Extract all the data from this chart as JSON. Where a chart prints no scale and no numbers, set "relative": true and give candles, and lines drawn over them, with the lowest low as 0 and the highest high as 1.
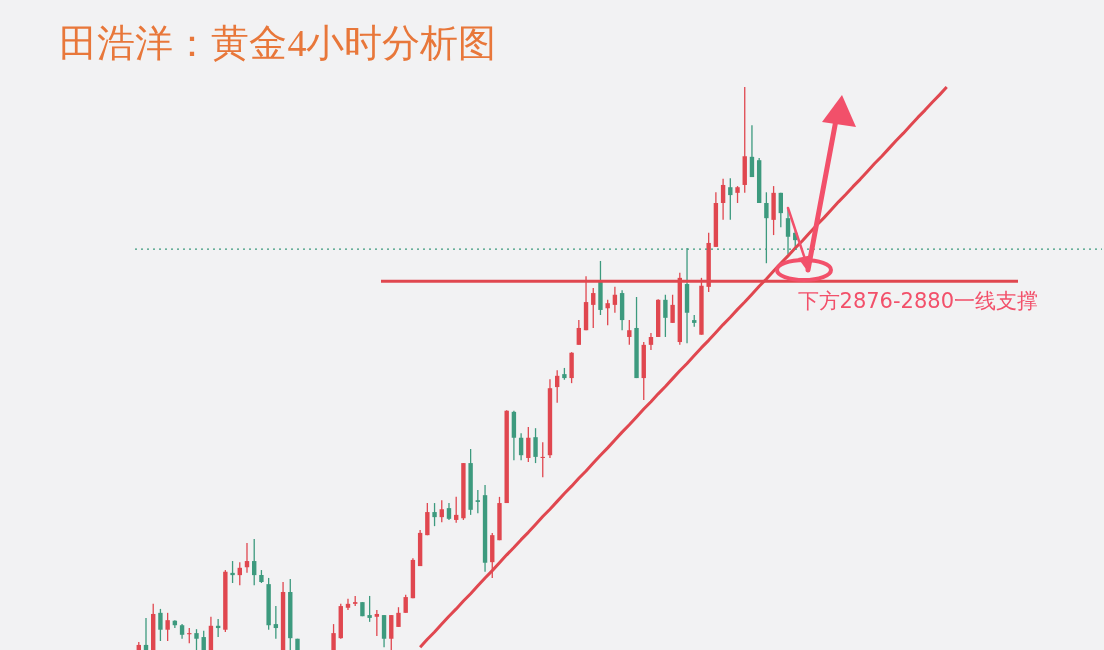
{
  "chart_data": {
    "type": "candlestick",
    "title": "田浩洋：黄金4小时分析图",
    "relative": true,
    "categories": [
      null,
      null,
      null,
      null,
      null,
      null,
      null,
      null,
      null,
      null,
      null,
      null,
      null,
      null,
      null,
      null,
      null,
      null,
      null,
      null,
      null,
      null,
      null,
      null,
      null,
      null,
      null,
      null,
      null,
      null,
      null,
      null,
      null,
      null,
      null,
      null,
      null,
      null,
      null,
      null,
      null,
      null,
      null,
      null,
      null,
      null,
      null,
      null,
      null,
      null,
      null,
      null,
      null,
      null,
      null,
      null,
      null,
      null,
      null,
      null,
      null,
      null,
      null,
      null,
      null,
      null,
      null,
      null,
      null,
      null,
      null,
      null,
      null,
      null,
      null,
      null,
      null,
      null,
      null,
      null,
      null,
      null,
      null,
      null,
      null,
      null,
      null,
      null,
      null,
      null,
      null,
      null,
      null,
      null,
      null,
      null,
      null,
      null,
      null,
      null,
      null,
      null,
      null,
      null,
      null,
      null,
      null,
      null,
      null,
      null,
      null,
      null,
      null,
      null,
      null,
      null,
      null,
      null,
      null,
      null,
      null,
      null,
      null,
      null,
      null,
      null,
      null,
      null,
      null,
      null,
      null,
      null,
      null,
      null
    ],
    "ohlc": [
      [
        0,
        0.014,
        0,
        0.009
      ],
      [
        0.009,
        0.057,
        0,
        0
      ],
      [
        0,
        0.082,
        0,
        0.064
      ],
      [
        0.066,
        0.073,
        0.016,
        0.036
      ],
      [
        0.036,
        0.066,
        0.016,
        0.053
      ],
      [
        0.052,
        0.053,
        0.039,
        0.044
      ],
      [
        0.044,
        0.046,
        0.02,
        0.027
      ],
      [
        0.028,
        0.039,
        0.012,
        0.03
      ],
      [
        0.03,
        0.037,
        0,
        0.02
      ],
      [
        0.023,
        0.034,
        0,
        0
      ],
      [
        0,
        0.059,
        0,
        0.043
      ],
      [
        0.043,
        0.055,
        0.023,
        0.039
      ],
      [
        0.036,
        0.142,
        0.032,
        0.139
      ],
      [
        0.137,
        0.158,
        0.119,
        0.133
      ],
      [
        0.133,
        0.156,
        0.115,
        0.146
      ],
      [
        0.147,
        0.19,
        0.137,
        0.158
      ],
      [
        0.158,
        0.197,
        0.115,
        0.133
      ],
      [
        0.133,
        0.142,
        0.119,
        0.121
      ],
      [
        0.117,
        0.128,
        0.036,
        0.044
      ],
      [
        0.046,
        0.078,
        0.02,
        0.039
      ],
      [
        0,
        0.121,
        0,
        0.103
      ],
      [
        0.103,
        0.126,
        0,
        0.021
      ],
      [
        0.02,
        0.02,
        0,
        0
      ],
      null,
      null,
      null,
      null,
      [
        0,
        0.046,
        0,
        0.03
      ],
      [
        0.021,
        0.082,
        0.02,
        0.078
      ],
      [
        0.075,
        0.091,
        0.071,
        0.082
      ],
      [
        0.082,
        0.096,
        0.078,
        0.085
      ],
      [
        0.085,
        0.085,
        0.06,
        0.06
      ],
      [
        0.062,
        0.096,
        0.05,
        0.057
      ],
      [
        0.059,
        0.071,
        0.025,
        0.064
      ],
      [
        0.062,
        0.062,
        0.005,
        0.02
      ],
      [
        0.02,
        0.062,
        0,
        0.062
      ],
      [
        0.041,
        0.076,
        0.041,
        0.066
      ],
      [
        0.066,
        0.098,
        0.066,
        0.094
      ],
      [
        0.092,
        0.163,
        0.092,
        0.16
      ],
      [
        0.149,
        0.213,
        0.149,
        0.208
      ],
      [
        0.204,
        0.261,
        0.204,
        0.245
      ],
      [
        0.245,
        0.261,
        0.22,
        0.236
      ],
      [
        0.236,
        0.266,
        0.227,
        0.25
      ],
      [
        0.252,
        0.261,
        0.231,
        0.233
      ],
      [
        0.231,
        0.272,
        0.226,
        0.24
      ],
      [
        0.234,
        0.332,
        0.231,
        0.332
      ],
      [
        0.332,
        0.357,
        0.24,
        0.249
      ],
      [
        0.266,
        0.284,
        0.243,
        0.263
      ],
      [
        0.275,
        0.293,
        0.139,
        0.155
      ],
      [
        0.156,
        0.208,
        0.128,
        0.204
      ],
      [
        0.195,
        0.272,
        0.195,
        0.261
      ],
      [
        0.261,
        0.426,
        0.261,
        0.425
      ],
      [
        0.423,
        0.425,
        0.337,
        0.377
      ],
      [
        0.377,
        0.385,
        0.337,
        0.346
      ],
      [
        0.341,
        0.396,
        0.334,
        0.377
      ],
      [
        0.378,
        0.394,
        0.332,
        0.343
      ],
      [
        0.341,
        0.369,
        0.307,
        0.343
      ],
      [
        0.346,
        0.481,
        0.341,
        0.465
      ],
      [
        0.467,
        0.497,
        0.439,
        0.487
      ],
      [
        0.49,
        0.501,
        0.48,
        0.483
      ],
      [
        0.483,
        0.529,
        0.474,
        0.528
      ],
      [
        0.542,
        0.586,
        0.542,
        0.572
      ],
      [
        0.568,
        0.664,
        0.568,
        0.618
      ],
      [
        0.613,
        0.643,
        0.572,
        0.634
      ],
      [
        0.654,
        0.691,
        0.595,
        0.604
      ],
      [
        0.607,
        0.622,
        0.577,
        0.616
      ],
      [
        0.613,
        0.645,
        0.599,
        0.631
      ],
      [
        0.634,
        0.639,
        0.568,
        0.586
      ],
      [
        0.556,
        0.586,
        0.542,
        0.568
      ],
      [
        0.572,
        0.627,
        0.483,
        0.483
      ],
      [
        0.483,
        0.547,
        0.444,
        0.542
      ],
      [
        0.542,
        0.563,
        0.533,
        0.556
      ],
      [
        0.556,
        0.623,
        0.556,
        0.622
      ],
      [
        0.622,
        0.631,
        0.556,
        0.59
      ],
      [
        0.581,
        0.631,
        0.581,
        0.613
      ],
      [
        0.547,
        0.67,
        0.542,
        0.661
      ],
      [
        0.65,
        0.714,
        0.545,
        0.599
      ],
      [
        0.586,
        0.595,
        0.574,
        0.581
      ],
      [
        0.56,
        0.661,
        0.56,
        0.647
      ],
      [
        0.645,
        0.741,
        0.636,
        0.723
      ],
      [
        0.716,
        0.813,
        0.716,
        0.794
      ],
      [
        0.794,
        0.837,
        0.764,
        0.826
      ],
      [
        0.822,
        0.838,
        0.764,
        0.808
      ],
      [
        0.812,
        0.824,
        0.794,
        0.822
      ],
      [
        0.826,
        1,
        0.812,
        0.877
      ],
      [
        0.876,
        0.932,
        0.84,
        0.84
      ],
      [
        0.87,
        0.874,
        0.794,
        0.794
      ],
      [
        0.794,
        0.813,
        0.687,
        0.767
      ],
      [
        0.764,
        0.824,
        0.737,
        0.812
      ],
      [
        0.812,
        0.812,
        0.751,
        0.776
      ],
      [
        0.767,
        0.785,
        0.702,
        0.734
      ],
      [
        0.741,
        0.746,
        0.716,
        0.728
      ],
      null,
      null,
      null,
      null,
      null,
      null,
      null,
      null,
      null,
      null,
      null,
      null,
      null,
      null,
      null,
      null,
      null,
      null,
      null,
      null,
      null,
      null,
      null,
      null,
      null,
      null,
      null,
      null,
      null,
      null,
      null,
      null,
      null,
      null,
      null,
      null,
      null,
      null,
      null,
      null,
      null,
      null
    ],
    "colors": [
      "#e0474f",
      "#3d9a7e",
      "#e0474f",
      "#3d9a7e",
      "#e0474f",
      "#3d9a7e",
      "#3d9a7e",
      "#e0474f",
      "#3d9a7e",
      "#3d9a7e",
      "#e0474f",
      "#3d9a7e",
      "#e0474f",
      "#3d9a7e",
      "#e0474f",
      "#e0474f",
      "#3d9a7e",
      "#3d9a7e",
      "#3d9a7e",
      "#3d9a7e",
      "#e0474f",
      "#3d9a7e",
      "#3d9a7e",
      null,
      null,
      null,
      null,
      "#e0474f",
      "#e0474f",
      "#e0474f",
      "#e0474f",
      "#3d9a7e",
      "#3d9a7e",
      "#e0474f",
      "#3d9a7e",
      "#e0474f",
      "#e0474f",
      "#e0474f",
      "#e0474f",
      "#e0474f",
      "#e0474f",
      "#3d9a7e",
      "#e0474f",
      "#3d9a7e",
      "#e0474f",
      "#e0474f",
      "#3d9a7e",
      "#3d9a7e",
      "#3d9a7e",
      "#e0474f",
      "#e0474f",
      "#e0474f",
      "#3d9a7e",
      "#3d9a7e",
      "#e0474f",
      "#3d9a7e",
      "#e0474f",
      "#e0474f",
      "#e0474f",
      "#3d9a7e",
      "#e0474f",
      "#e0474f",
      "#e0474f",
      "#e0474f",
      "#3d9a7e",
      "#e0474f",
      "#e0474f",
      "#3d9a7e",
      "#e0474f",
      "#3d9a7e",
      "#e0474f",
      "#e0474f",
      "#e0474f",
      "#3d9a7e",
      "#e0474f",
      "#e0474f",
      "#3d9a7e",
      "#3d9a7e",
      "#e0474f",
      "#e0474f",
      "#e0474f",
      "#e0474f",
      "#3d9a7e",
      "#e0474f",
      "#e0474f",
      "#3d9a7e",
      "#3d9a7e",
      "#3d9a7e",
      "#e0474f",
      "#3d9a7e",
      "#3d9a7e",
      "#3d9a7e",
      null,
      null,
      null,
      null,
      null,
      null,
      null,
      null,
      null,
      null,
      null,
      null,
      null,
      null,
      null,
      null,
      null,
      null,
      null,
      null,
      null,
      null,
      null,
      null,
      null,
      null,
      null,
      null,
      null,
      null,
      null,
      null,
      null,
      null,
      null,
      null,
      null,
      null,
      null,
      null,
      null,
      null
    ],
    "series": [
      {
        "type": "line",
        "color": "#e0474f",
        "values": [
          null,
          null,
          null,
          null,
          null,
          null,
          null,
          null,
          null,
          null,
          null,
          null,
          null,
          null,
          null,
          null,
          null,
          null,
          null,
          null,
          null,
          null,
          null,
          null,
          null,
          null,
          null,
          null,
          null,
          null,
          null,
          null,
          null,
          null,
          null,
          null,
          null,
          null,
          null,
          0.005,
          0.019,
          0.032,
          0.046,
          0.06,
          0.073,
          0.087,
          0.1,
          0.114,
          0.128,
          0.141,
          0.155,
          0.169,
          0.182,
          0.196,
          0.209,
          0.223,
          0.237,
          0.25,
          0.264,
          0.278,
          0.291,
          0.305,
          0.318,
          0.332,
          0.346,
          0.359,
          0.373,
          0.387,
          0.4,
          0.414,
          0.428,
          0.441,
          0.455,
          0.468,
          0.482,
          0.496,
          0.509,
          0.523,
          0.537,
          0.55,
          0.564,
          0.578,
          0.591,
          0.605,
          0.618,
          0.632,
          0.646,
          0.659,
          0.673,
          0.687,
          0.7,
          0.714,
          0.727,
          0.741,
          0.755,
          0.768,
          0.782,
          0.796,
          0.809,
          0.823,
          0.836,
          0.85,
          0.864,
          0.877,
          0.891,
          0.905,
          0.918,
          0.932,
          0.946,
          0.959,
          0.973,
          0.986,
          1.0,
          null,
          null,
          null,
          null,
          null,
          null,
          null,
          null,
          null,
          null,
          null,
          null,
          null,
          null,
          null,
          null,
          null,
          null,
          null,
          null,
          null
        ]
      }
    ],
    "ref_lines": [
      {
        "axis": "y",
        "value": 0.655,
        "label": "下方2876-2880一线支撑",
        "color": "#e0474f"
      },
      {
        "axis": "y",
        "value": 0.712,
        "color": "#3d9a7e",
        "line_style": "dotted"
      }
    ]
  }
}
